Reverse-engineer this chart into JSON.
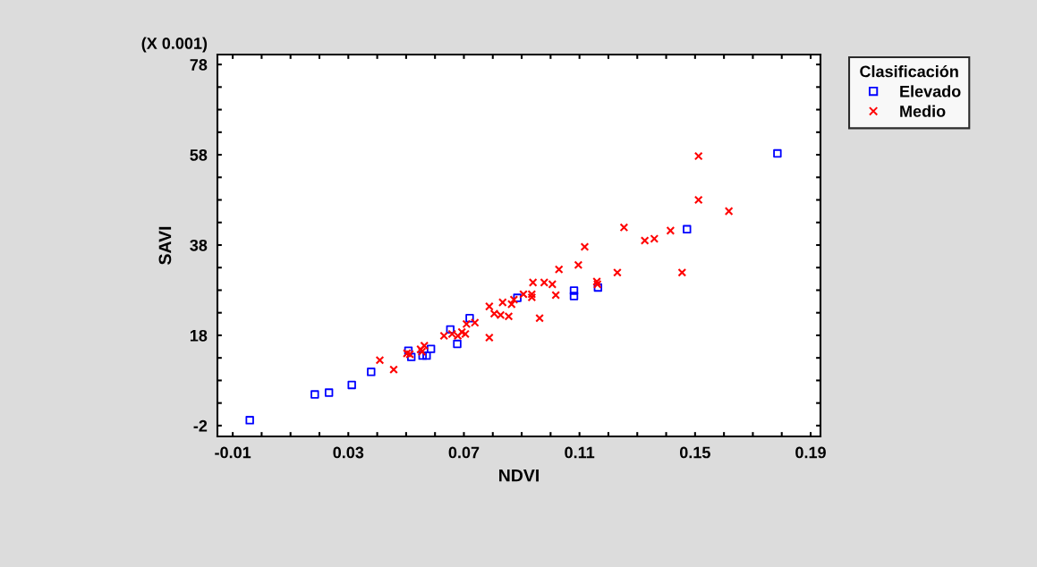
{
  "chart_data": {
    "type": "scatter",
    "xlabel": "NDVI",
    "ylabel": "SAVI",
    "legend_title": "Clasificación",
    "legend": "top right",
    "annotations": [
      "(X 0.001)"
    ],
    "xlim": [
      -0.0153,
      0.1934
    ],
    "ylim": [
      -4.4,
      80.2
    ],
    "xticks": [
      -0.01,
      {
        "value": 0.0,
        "label": null
      },
      {
        "value": 0.01,
        "label": null
      },
      {
        "value": 0.02,
        "label": null
      },
      0.03,
      {
        "value": 0.04,
        "label": null
      },
      {
        "value": 0.05,
        "label": null
      },
      {
        "value": 0.06,
        "label": null
      },
      0.07,
      {
        "value": 0.08,
        "label": null
      },
      {
        "value": 0.09,
        "label": null
      },
      {
        "value": 0.1,
        "label": null
      },
      0.11,
      {
        "value": 0.12,
        "label": null
      },
      {
        "value": 0.13,
        "label": null
      },
      {
        "value": 0.14,
        "label": null
      },
      0.15,
      {
        "value": 0.16,
        "label": null
      },
      {
        "value": 0.17,
        "label": null
      },
      {
        "value": 0.18,
        "label": null
      },
      0.19
    ],
    "yticks": [
      -2,
      {
        "value": 3,
        "label": null
      },
      {
        "value": 8,
        "label": null
      },
      {
        "value": 13,
        "label": null
      },
      18,
      {
        "value": 23,
        "label": null
      },
      {
        "value": 28,
        "label": null
      },
      {
        "value": 33,
        "label": null
      },
      38,
      {
        "value": 43,
        "label": null
      },
      {
        "value": 48,
        "label": null
      },
      {
        "value": 53,
        "label": null
      },
      58,
      {
        "value": 63,
        "label": null
      },
      {
        "value": 68,
        "label": null
      },
      {
        "value": 73,
        "label": null
      },
      78
    ],
    "grid": false,
    "series": [
      {
        "name": "Elevado",
        "color": "#0000ff",
        "marker": "square",
        "x": [
          -0.0041,
          0.0184,
          0.0233,
          0.0312,
          0.0379,
          0.0508,
          0.0518,
          0.0557,
          0.0571,
          0.0586,
          0.0653,
          0.0677,
          0.072,
          0.0885,
          0.1081,
          0.1081,
          0.1164,
          0.1472,
          0.1785
        ],
        "values": [
          -0.8,
          4.9,
          5.3,
          7.0,
          9.9,
          14.6,
          13.2,
          13.5,
          13.5,
          15.0,
          19.3,
          16.1,
          21.8,
          26.3,
          27.9,
          26.7,
          28.6,
          41.5,
          58.3
        ]
      },
      {
        "name": "Medio",
        "color": "#ff0000",
        "marker": "cross",
        "x": [
          0.0409,
          0.0457,
          0.0503,
          0.0513,
          0.055,
          0.0555,
          0.0563,
          0.0631,
          0.0659,
          0.0679,
          0.0693,
          0.0705,
          0.0709,
          0.0738,
          0.0788,
          0.0788,
          0.0805,
          0.0827,
          0.0834,
          0.0855,
          0.0865,
          0.0873,
          0.0906,
          0.0935,
          0.0935,
          0.0939,
          0.0962,
          0.0978,
          0.1006,
          0.1018,
          0.1029,
          0.1096,
          0.1118,
          0.116,
          0.1162,
          0.1231,
          0.1254,
          0.1326,
          0.1359,
          0.1415,
          0.1455,
          0.1512,
          0.1512,
          0.1617
        ],
        "values": [
          12.5,
          10.4,
          14.0,
          13.8,
          14.9,
          14.4,
          15.7,
          17.9,
          18.3,
          17.9,
          18.7,
          18.3,
          20.5,
          20.8,
          17.5,
          24.4,
          22.8,
          22.5,
          25.3,
          22.2,
          24.9,
          25.9,
          27.1,
          27.1,
          26.4,
          29.7,
          21.8,
          29.7,
          29.3,
          26.9,
          32.6,
          33.6,
          37.6,
          29.9,
          29.3,
          31.9,
          41.9,
          39.0,
          39.4,
          41.2,
          31.9,
          57.7,
          48.0,
          45.5
        ]
      }
    ]
  }
}
